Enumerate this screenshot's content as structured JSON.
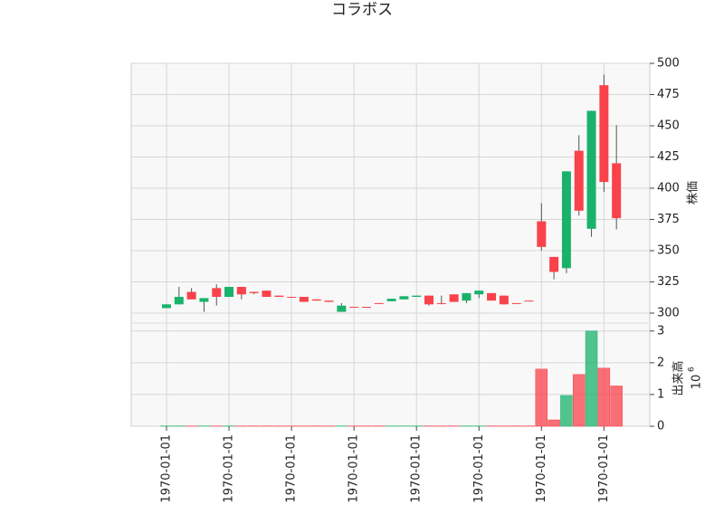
{
  "chart_data": {
    "type": "candlestick",
    "title": "コラボス",
    "categories": [
      "1970-01-01",
      null,
      null,
      null,
      null,
      "1970-01-01",
      null,
      null,
      null,
      null,
      "1970-01-01",
      null,
      null,
      null,
      null,
      "1970-01-01",
      null,
      null,
      null,
      null,
      "1970-01-01",
      null,
      null,
      null,
      null,
      "1970-01-01",
      null,
      null,
      null,
      null,
      "1970-01-01",
      null,
      null,
      null,
      null,
      "1970-01-01",
      null
    ],
    "open": [
      304,
      307,
      317,
      309,
      320,
      313,
      321,
      317,
      318,
      314,
      313,
      313,
      311,
      310,
      301,
      305,
      305,
      308,
      309.5,
      311,
      313,
      314,
      308,
      315,
      310,
      315,
      316,
      314,
      308,
      310,
      373.5,
      345,
      336,
      430,
      367.5,
      482.5,
      420
    ],
    "high": [
      307,
      321,
      320,
      312,
      323,
      321,
      321,
      317,
      318,
      314,
      313,
      313,
      311,
      310,
      308,
      305,
      305,
      308,
      311.5,
      313.5,
      314,
      314,
      314,
      315,
      316,
      318,
      316,
      314,
      308,
      310,
      388,
      345,
      413.5,
      442.5,
      462,
      491,
      450.5
    ],
    "low": [
      304,
      307,
      311,
      301,
      306,
      313,
      311,
      315,
      313,
      313,
      312.5,
      309,
      310,
      309,
      301,
      304.5,
      304.5,
      307.5,
      309.5,
      311,
      313,
      306,
      307,
      309,
      308,
      312,
      310,
      307,
      307.5,
      309.5,
      350,
      327,
      332,
      378,
      361,
      397,
      367
    ],
    "close": [
      307,
      313,
      311,
      312,
      313,
      321,
      315,
      316,
      313,
      313,
      312.5,
      309,
      310,
      309,
      306,
      304.5,
      304.5,
      307.5,
      311.5,
      313.5,
      314,
      307,
      307.5,
      309,
      316,
      318,
      310,
      307,
      307.5,
      309.5,
      353,
      333,
      413.5,
      382,
      462,
      405,
      376
    ],
    "ylim": [
      292,
      500
    ],
    "yticks": [
      300,
      325,
      350,
      375,
      400,
      425,
      450,
      475,
      500
    ],
    "ylabel": "株価",
    "up_color": "#1ab26b",
    "down_color": "#f9424a",
    "grid": true,
    "volume": {
      "values": [
        0.01,
        0.01,
        0.01,
        0.01,
        0.01,
        0.01,
        0.01,
        0.01,
        0.01,
        0.01,
        0.01,
        0.01,
        0.01,
        0.01,
        0.01,
        0.01,
        0.01,
        0.01,
        0.01,
        0.01,
        0.01,
        0.01,
        0.01,
        0.01,
        0.01,
        0.01,
        0.01,
        0.01,
        0.01,
        0.01,
        1.8,
        0.2,
        0.97,
        1.63,
        3.0,
        1.83,
        1.27
      ],
      "ylim": [
        0,
        3.25
      ],
      "yticks": [
        0,
        1,
        2,
        3
      ],
      "ylabel": "出来高",
      "offset_base": "10",
      "offset_exponent": "6"
    }
  }
}
